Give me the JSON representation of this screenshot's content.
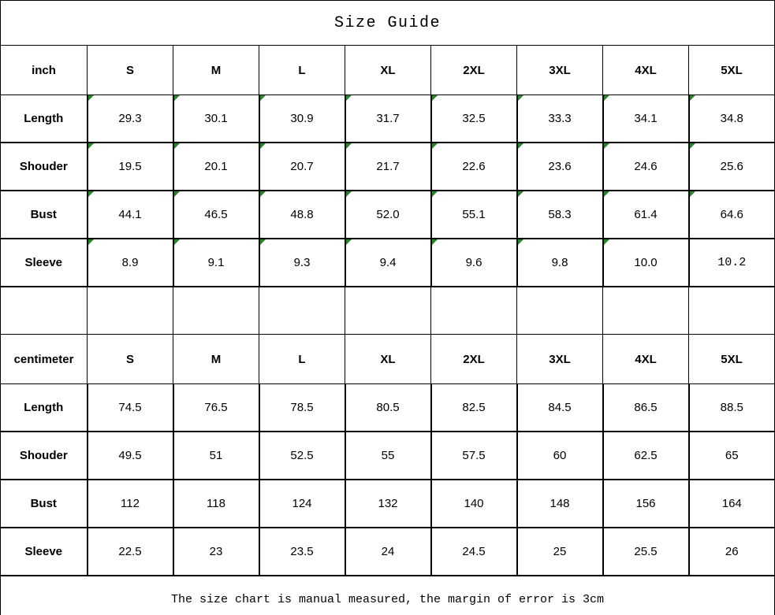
{
  "title": "Size Guide",
  "footer_note": "The size chart is manual measured, the margin of error is 3cm",
  "colors": {
    "flag_green": "#1f8b24",
    "border": "#000000",
    "background": "#ffffff",
    "text": "#000000"
  },
  "table": {
    "sizes": [
      "S",
      "M",
      "L",
      "XL",
      "2XL",
      "3XL",
      "4XL",
      "5XL"
    ],
    "inch_section": {
      "unit_label": "inch",
      "rows": [
        {
          "label": "Length",
          "values": [
            "29.3",
            "30.1",
            "30.9",
            "31.7",
            "32.5",
            "33.3",
            "34.1",
            "34.8"
          ]
        },
        {
          "label": "Shouder",
          "values": [
            "19.5",
            "20.1",
            "20.7",
            "21.7",
            "22.6",
            "23.6",
            "24.6",
            "25.6"
          ]
        },
        {
          "label": "Bust",
          "values": [
            "44.1",
            "46.5",
            "48.8",
            "52.0",
            "55.1",
            "58.3",
            "61.4",
            "64.6"
          ]
        },
        {
          "label": "Sleeve",
          "values": [
            "8.9",
            "9.1",
            "9.3",
            "9.4",
            "9.6",
            "9.8",
            "10.0",
            "10.2"
          ]
        }
      ]
    },
    "centimeter_section": {
      "unit_label": "centimeter",
      "rows": [
        {
          "label": "Length",
          "values": [
            "74.5",
            "76.5",
            "78.5",
            "80.5",
            "82.5",
            "84.5",
            "86.5",
            "88.5"
          ]
        },
        {
          "label": "Shouder",
          "values": [
            "49.5",
            "51",
            "52.5",
            "55",
            "57.5",
            "60",
            "62.5",
            "65"
          ]
        },
        {
          "label": "Bust",
          "values": [
            "112",
            "118",
            "124",
            "132",
            "140",
            "148",
            "156",
            "164"
          ]
        },
        {
          "label": "Sleeve",
          "values": [
            "22.5",
            "23",
            "23.5",
            "24",
            "24.5",
            "25",
            "25.5",
            "26"
          ]
        }
      ]
    }
  }
}
